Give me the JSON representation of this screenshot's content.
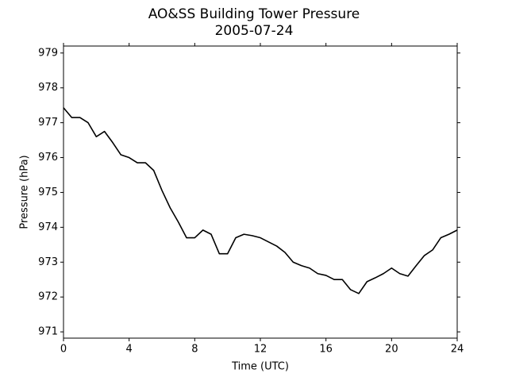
{
  "chart_data": {
    "type": "line",
    "title": "AO&SS Building Tower Pressure",
    "subtitle": "2005-07-24",
    "x_label": "Time (UTC)",
    "y_label": "Pressure (hPa)",
    "series": [
      {
        "name": "Pressure",
        "color": "#000000",
        "x": [
          0,
          0.5,
          1,
          1.5,
          2,
          2.5,
          3,
          3.5,
          4,
          4.5,
          5,
          5.5,
          6,
          6.5,
          7,
          7.5,
          8,
          8.5,
          9,
          9.5,
          10,
          10.5,
          11,
          11.5,
          12,
          12.5,
          13,
          13.5,
          14,
          14.5,
          15,
          15.5,
          16,
          16.5,
          17,
          17.5,
          18,
          18.5,
          19,
          19.5,
          20,
          20.5,
          21,
          21.5,
          22,
          22.5,
          23,
          23.5,
          24
        ],
        "values": [
          977.43,
          977.15,
          977.15,
          977.0,
          976.6,
          976.75,
          976.43,
          976.08,
          976.0,
          975.85,
          975.85,
          975.63,
          975.06,
          974.56,
          974.15,
          973.7,
          973.7,
          973.92,
          973.8,
          973.24,
          973.24,
          973.7,
          973.8,
          973.76,
          973.7,
          973.58,
          973.46,
          973.28,
          973.0,
          972.9,
          972.83,
          972.67,
          972.62,
          972.5,
          972.5,
          972.21,
          972.1,
          972.44,
          972.55,
          972.67,
          972.83,
          972.67,
          972.6,
          972.9,
          973.19,
          973.35,
          973.7,
          973.8,
          973.92
        ]
      }
    ],
    "xlim": [
      0,
      24
    ],
    "xticks": [
      0,
      4,
      8,
      12,
      16,
      20,
      24
    ],
    "ylim": [
      970.82,
      979.2
    ],
    "yticks": [
      971,
      972,
      973,
      974,
      975,
      976,
      977,
      978,
      979
    ],
    "grid": false
  }
}
